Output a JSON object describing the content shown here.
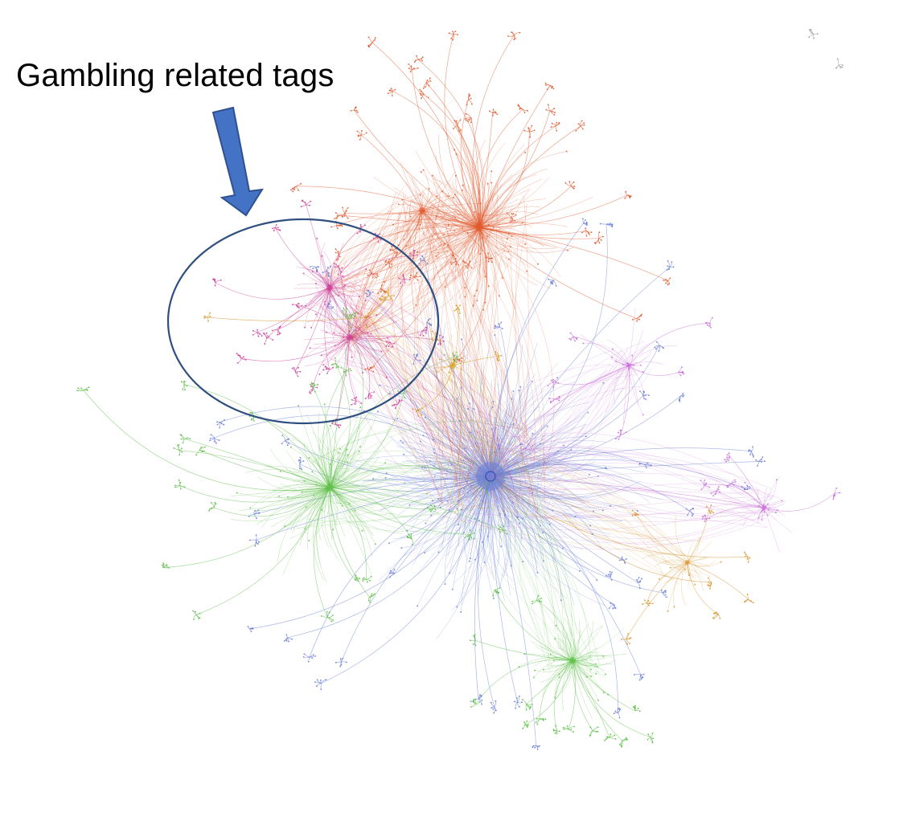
{
  "annotation": {
    "label": "Gambling related tags",
    "arrow_color": "#4472c4",
    "circle_color": "#2f4f7f"
  },
  "clusters": [
    {
      "id": "red",
      "color": "#e05a2e"
    },
    {
      "id": "pink",
      "color": "#cc3d99"
    },
    {
      "id": "blue",
      "color": "#6b7fd7"
    },
    {
      "id": "green",
      "color": "#5fbf4a"
    },
    {
      "id": "violet",
      "color": "#c86ed8"
    },
    {
      "id": "orange",
      "color": "#d9942e"
    },
    {
      "id": "gold",
      "color": "#d4a017"
    },
    {
      "id": "grey",
      "color": "#9a9a9a"
    }
  ]
}
